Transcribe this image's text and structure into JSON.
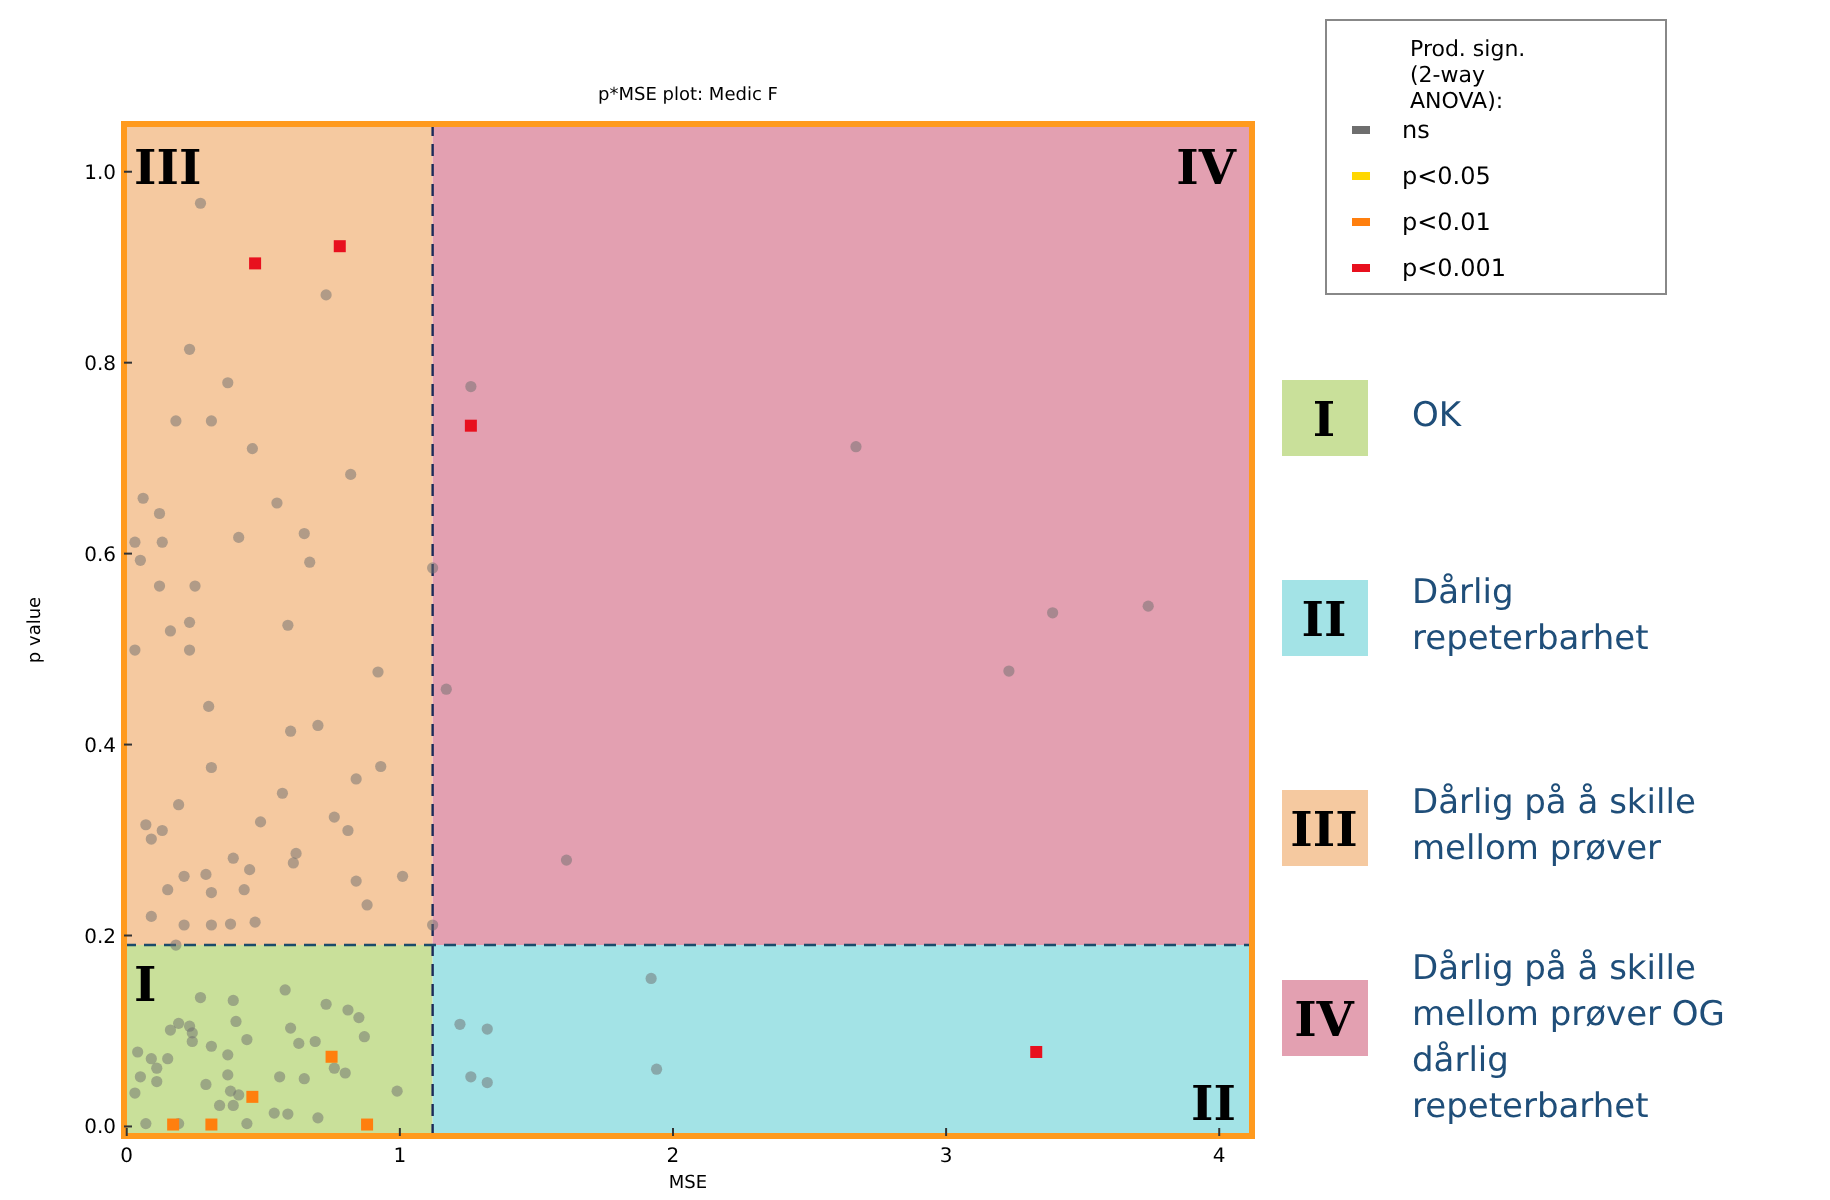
{
  "chart_data": {
    "type": "scatter",
    "title": "p*MSE plot: Medic F",
    "xlabel": "MSE",
    "ylabel": "p value",
    "legend_title": "Prod. sign. (2-way ANOVA):",
    "legend": "top right",
    "marker": "circle",
    "xlim": [
      -0.01,
      4.12
    ],
    "ylim": [
      -0.01,
      1.05
    ],
    "xticks": [
      0,
      1,
      2,
      3,
      4
    ],
    "yticks": [
      {
        "value": 0,
        "label": "0.0"
      },
      {
        "value": 0.2,
        "label": "0.2"
      },
      {
        "value": 0.4,
        "label": "0.4"
      },
      {
        "value": 0.6,
        "label": "0.6"
      },
      {
        "value": 0.8,
        "label": "0.8"
      },
      {
        "value": 1,
        "label": "1.0"
      }
    ],
    "ref_lines": [
      {
        "axis": "x",
        "value": 1.12,
        "line_style": "dashed",
        "color": "#1a2a5a"
      },
      {
        "axis": "y",
        "value": 0.19,
        "line_style": "dashed",
        "color": "#1a4a6a"
      }
    ],
    "series": [
      {
        "name": "ns",
        "color": "#6e6e6e",
        "x": [
          0.27,
          0.73,
          0.23,
          0.37,
          0.18,
          0.31,
          0.46,
          0.82,
          0.06,
          0.12,
          0.55,
          0.03,
          0.13,
          0.41,
          0.65,
          0.05,
          0.67,
          0.12,
          0.25,
          1.12,
          0.16,
          0.23,
          0.59,
          0.03,
          0.23,
          0.92,
          0.3,
          0.6,
          0.7,
          0.31,
          0.93,
          0.84,
          0.57,
          0.19,
          0.07,
          0.13,
          0.09,
          0.49,
          0.76,
          0.81,
          0.39,
          0.62,
          0.61,
          0.21,
          0.29,
          0.45,
          0.84,
          1.01,
          0.15,
          0.31,
          0.43,
          0.88,
          0.09,
          0.21,
          0.31,
          0.38,
          0.47,
          1.12,
          0.18,
          0.58,
          0.27,
          0.39,
          0.73,
          0.81,
          0.85,
          0.4,
          0.19,
          0.23,
          0.16,
          0.24,
          0.6,
          0.87,
          0.44,
          0.24,
          0.63,
          0.69,
          0.31,
          0.04,
          0.37,
          0.09,
          0.15,
          0.11,
          0.76,
          0.8,
          0.05,
          0.37,
          0.56,
          0.65,
          0.11,
          0.29,
          0.03,
          0.38,
          0.41,
          0.99,
          0.34,
          0.39,
          0.54,
          0.59,
          0.7,
          0.07,
          0.19,
          0.44,
          1.26,
          2.67,
          1.17,
          3.39,
          3.74,
          3.23,
          1.61,
          1.92,
          1.22,
          1.32,
          1.26,
          1.32,
          1.94
        ],
        "values": [
          0.967,
          0.871,
          0.814,
          0.779,
          0.739,
          0.739,
          0.71,
          0.683,
          0.658,
          0.642,
          0.653,
          0.612,
          0.612,
          0.617,
          0.621,
          0.593,
          0.591,
          0.566,
          0.566,
          0.585,
          0.519,
          0.528,
          0.525,
          0.499,
          0.499,
          0.476,
          0.44,
          0.414,
          0.42,
          0.376,
          0.377,
          0.364,
          0.349,
          0.337,
          0.316,
          0.31,
          0.301,
          0.319,
          0.324,
          0.31,
          0.281,
          0.286,
          0.276,
          0.262,
          0.264,
          0.269,
          0.257,
          0.262,
          0.248,
          0.245,
          0.248,
          0.232,
          0.22,
          0.211,
          0.211,
          0.212,
          0.214,
          0.211,
          0.19,
          0.143,
          0.135,
          0.132,
          0.128,
          0.122,
          0.114,
          0.11,
          0.108,
          0.105,
          0.101,
          0.098,
          0.103,
          0.094,
          0.091,
          0.089,
          0.087,
          0.089,
          0.084,
          0.078,
          0.075,
          0.071,
          0.071,
          0.061,
          0.061,
          0.056,
          0.052,
          0.054,
          0.052,
          0.05,
          0.047,
          0.044,
          0.035,
          0.037,
          0.033,
          0.037,
          0.022,
          0.022,
          0.014,
          0.013,
          0.009,
          0.003,
          0.003,
          0.003,
          0.775,
          0.712,
          0.458,
          0.538,
          0.545,
          0.477,
          0.279,
          0.155,
          0.107,
          0.102,
          0.052,
          0.046,
          0.06
        ]
      },
      {
        "name": "p<0.05",
        "color": "#ffd700"
      },
      {
        "name": "p<0.01",
        "color": "#ff7f0e",
        "marker": "square",
        "x": [
          0.75,
          0.46,
          0.17,
          0.31,
          0.88
        ],
        "values": [
          0.073,
          0.031,
          0.002,
          0.002,
          0.002
        ]
      },
      {
        "name": "p<0.001",
        "color": "#e8101e",
        "marker": "square",
        "x": [
          0.47,
          0.78,
          1.26,
          3.33
        ],
        "values": [
          0.904,
          0.922,
          0.734,
          0.078
        ]
      }
    ],
    "annotations": [
      "III",
      "IV",
      "I",
      "II",
      "I",
      "OK",
      "II",
      "Dårlig repeterbarhet",
      "III",
      "Dårlig på å skille mellom prøver",
      "IV",
      "Dårlig på å skille mellom prøver OG dårlig repeterbarhet"
    ]
  }
}
